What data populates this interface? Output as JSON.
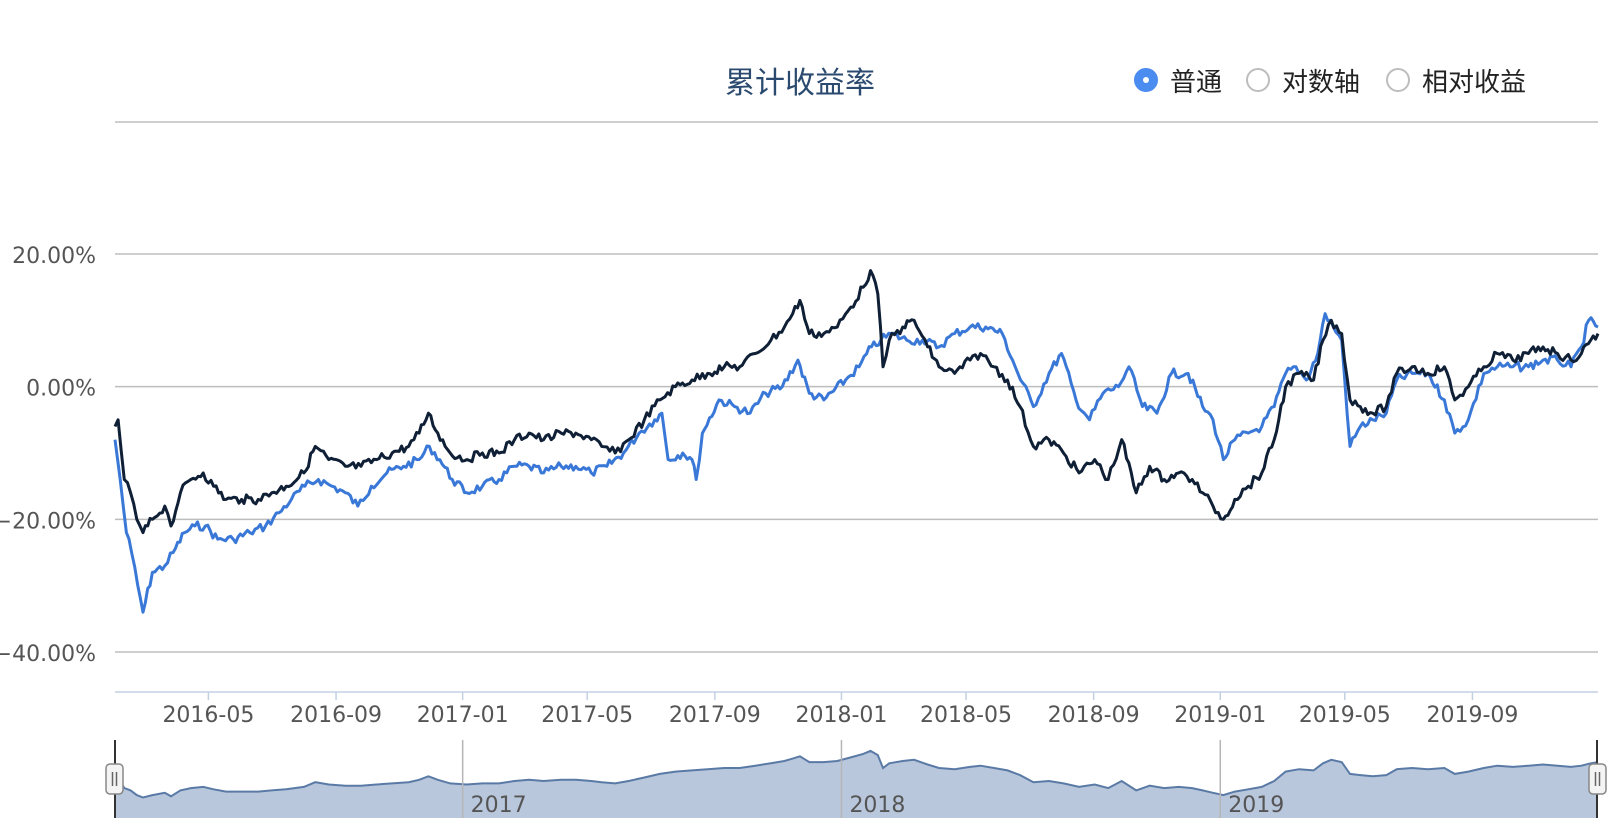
{
  "title": "累计收益率",
  "modes": [
    {
      "label": "普通",
      "checked": true
    },
    {
      "label": "对数轴",
      "checked": false
    },
    {
      "label": "相对收益",
      "checked": false
    }
  ],
  "colors": {
    "series_strategy": "#0f1f36",
    "series_benchmark": "#3a78d8",
    "grid": "#bdbdbd",
    "navigator_fill": "#b9c7dc",
    "navigator_line": "#5a7aa6",
    "radio_checked": "#4b8cf0"
  },
  "navigator": {
    "year_labels": [
      "2017",
      "2018",
      "2019"
    ]
  },
  "chart_data": {
    "type": "line",
    "title": "累计收益率",
    "y_unit": "%",
    "ylim": [
      -46,
      20
    ],
    "y_ticks": [
      20,
      0,
      -20,
      -40
    ],
    "y_tick_labels": [
      "20.00%",
      "0.00%",
      "−20.00%",
      "−40.00%"
    ],
    "x_range": [
      "2016-02-01",
      "2019-12-31"
    ],
    "x_ticks": [
      "2016-05-01",
      "2016-09-01",
      "2017-01-01",
      "2017-05-01",
      "2017-09-01",
      "2018-01-01",
      "2018-05-01",
      "2018-09-01",
      "2019-01-01",
      "2019-05-01",
      "2019-09-01"
    ],
    "x_tick_labels": [
      "2016-05",
      "2016-09",
      "2017-01",
      "2017-05",
      "2017-09",
      "2018-01",
      "2018-05",
      "2018-09",
      "2019-01",
      "2019-05",
      "2019-09"
    ],
    "grid": true,
    "legend": "none",
    "series": [
      {
        "color": "#0f1f36",
        "points": [
          [
            "2016-02-01",
            -6
          ],
          [
            "2016-02-04",
            -5
          ],
          [
            "2016-02-10",
            -14
          ],
          [
            "2016-02-16",
            -16
          ],
          [
            "2016-02-22",
            -20
          ],
          [
            "2016-02-28",
            -22
          ],
          [
            "2016-03-08",
            -20
          ],
          [
            "2016-03-20",
            -18
          ],
          [
            "2016-03-26",
            -21
          ],
          [
            "2016-04-04",
            -16
          ],
          [
            "2016-04-14",
            -14
          ],
          [
            "2016-04-26",
            -13
          ],
          [
            "2016-05-06",
            -15
          ],
          [
            "2016-05-18",
            -17
          ],
          [
            "2016-06-02",
            -17
          ],
          [
            "2016-06-18",
            -17
          ],
          [
            "2016-07-01",
            -16
          ],
          [
            "2016-07-15",
            -15
          ],
          [
            "2016-08-01",
            -13
          ],
          [
            "2016-08-12",
            -9
          ],
          [
            "2016-08-25",
            -11
          ],
          [
            "2016-09-10",
            -12
          ],
          [
            "2016-09-25",
            -12
          ],
          [
            "2016-10-10",
            -11
          ],
          [
            "2016-10-25",
            -10
          ],
          [
            "2016-11-10",
            -9
          ],
          [
            "2016-11-20",
            -7
          ],
          [
            "2016-11-29",
            -4
          ],
          [
            "2016-12-08",
            -7
          ],
          [
            "2016-12-20",
            -10
          ],
          [
            "2017-01-05",
            -11
          ],
          [
            "2017-01-20",
            -10
          ],
          [
            "2017-02-05",
            -10
          ],
          [
            "2017-02-20",
            -8
          ],
          [
            "2017-03-06",
            -7
          ],
          [
            "2017-03-20",
            -8
          ],
          [
            "2017-04-06",
            -7
          ],
          [
            "2017-04-20",
            -7
          ],
          [
            "2017-05-05",
            -8
          ],
          [
            "2017-05-15",
            -9
          ],
          [
            "2017-05-28",
            -10
          ],
          [
            "2017-06-10",
            -8
          ],
          [
            "2017-06-25",
            -5
          ],
          [
            "2017-07-10",
            -2
          ],
          [
            "2017-07-25",
            0
          ],
          [
            "2017-08-10",
            1
          ],
          [
            "2017-08-25",
            2
          ],
          [
            "2017-09-10",
            3
          ],
          [
            "2017-09-25",
            3
          ],
          [
            "2017-10-10",
            5
          ],
          [
            "2017-10-25",
            7
          ],
          [
            "2017-11-07",
            9
          ],
          [
            "2017-11-15",
            11
          ],
          [
            "2017-11-22",
            13
          ],
          [
            "2017-12-01",
            8
          ],
          [
            "2017-12-15",
            8
          ],
          [
            "2017-12-28",
            9
          ],
          [
            "2018-01-10",
            12
          ],
          [
            "2018-01-22",
            15
          ],
          [
            "2018-01-29",
            17.5
          ],
          [
            "2018-02-05",
            14
          ],
          [
            "2018-02-10",
            3
          ],
          [
            "2018-02-16",
            7
          ],
          [
            "2018-03-01",
            9
          ],
          [
            "2018-03-12",
            10
          ],
          [
            "2018-03-25",
            6
          ],
          [
            "2018-04-05",
            3
          ],
          [
            "2018-04-20",
            2
          ],
          [
            "2018-05-05",
            4
          ],
          [
            "2018-05-15",
            5
          ],
          [
            "2018-05-28",
            3
          ],
          [
            "2018-06-10",
            1
          ],
          [
            "2018-06-22",
            -3
          ],
          [
            "2018-07-05",
            -9
          ],
          [
            "2018-07-20",
            -8
          ],
          [
            "2018-08-03",
            -10
          ],
          [
            "2018-08-18",
            -13
          ],
          [
            "2018-09-02",
            -11
          ],
          [
            "2018-09-15",
            -14
          ],
          [
            "2018-09-28",
            -8
          ],
          [
            "2018-10-12",
            -16
          ],
          [
            "2018-10-25",
            -12
          ],
          [
            "2018-11-08",
            -14
          ],
          [
            "2018-11-22",
            -13
          ],
          [
            "2018-12-05",
            -14
          ],
          [
            "2018-12-15",
            -16
          ],
          [
            "2018-12-25",
            -18
          ],
          [
            "2019-01-04",
            -20
          ],
          [
            "2019-01-15",
            -17
          ],
          [
            "2019-01-28",
            -15
          ],
          [
            "2019-02-10",
            -13
          ],
          [
            "2019-02-22",
            -8
          ],
          [
            "2019-03-05",
            0
          ],
          [
            "2019-03-18",
            2
          ],
          [
            "2019-04-01",
            1
          ],
          [
            "2019-04-10",
            7
          ],
          [
            "2019-04-18",
            10
          ],
          [
            "2019-04-28",
            8
          ],
          [
            "2019-05-06",
            -2
          ],
          [
            "2019-05-16",
            -3
          ],
          [
            "2019-05-28",
            -4
          ],
          [
            "2019-06-10",
            -3
          ],
          [
            "2019-06-20",
            2
          ],
          [
            "2019-07-05",
            3
          ],
          [
            "2019-07-20",
            2
          ],
          [
            "2019-08-05",
            3
          ],
          [
            "2019-08-15",
            -2
          ],
          [
            "2019-08-28",
            0
          ],
          [
            "2019-09-12",
            3
          ],
          [
            "2019-09-25",
            5
          ],
          [
            "2019-10-10",
            4
          ],
          [
            "2019-10-25",
            5
          ],
          [
            "2019-11-08",
            6
          ],
          [
            "2019-11-22",
            5
          ],
          [
            "2019-12-05",
            4
          ],
          [
            "2019-12-15",
            5
          ],
          [
            "2019-12-24",
            7
          ],
          [
            "2019-12-31",
            8
          ]
        ]
      },
      {
        "color": "#3a78d8",
        "points": [
          [
            "2016-02-01",
            -8
          ],
          [
            "2016-02-06",
            -14
          ],
          [
            "2016-02-12",
            -22
          ],
          [
            "2016-02-17",
            -25
          ],
          [
            "2016-02-23",
            -30
          ],
          [
            "2016-02-28",
            -34
          ],
          [
            "2016-03-08",
            -28
          ],
          [
            "2016-03-20",
            -27
          ],
          [
            "2016-03-28",
            -25
          ],
          [
            "2016-04-08",
            -22
          ],
          [
            "2016-04-18",
            -21
          ],
          [
            "2016-04-28",
            -21
          ],
          [
            "2016-05-10",
            -23
          ],
          [
            "2016-05-25",
            -23
          ],
          [
            "2016-06-10",
            -22
          ],
          [
            "2016-06-25",
            -21
          ],
          [
            "2016-07-08",
            -19
          ],
          [
            "2016-07-20",
            -17
          ],
          [
            "2016-08-02",
            -15
          ],
          [
            "2016-08-15",
            -14
          ],
          [
            "2016-08-28",
            -15
          ],
          [
            "2016-09-10",
            -16
          ],
          [
            "2016-09-22",
            -18
          ],
          [
            "2016-10-05",
            -15
          ],
          [
            "2016-10-20",
            -13
          ],
          [
            "2016-11-05",
            -12
          ],
          [
            "2016-11-20",
            -11
          ],
          [
            "2016-11-30",
            -9
          ],
          [
            "2016-12-10",
            -11
          ],
          [
            "2016-12-22",
            -14
          ],
          [
            "2017-01-05",
            -16
          ],
          [
            "2017-01-20",
            -15
          ],
          [
            "2017-02-05",
            -14
          ],
          [
            "2017-02-20",
            -12
          ],
          [
            "2017-03-06",
            -12
          ],
          [
            "2017-03-20",
            -13
          ],
          [
            "2017-04-06",
            -12
          ],
          [
            "2017-04-20",
            -12
          ],
          [
            "2017-05-05",
            -13
          ],
          [
            "2017-05-20",
            -12
          ],
          [
            "2017-06-05",
            -10
          ],
          [
            "2017-06-20",
            -7
          ],
          [
            "2017-07-05",
            -5
          ],
          [
            "2017-07-12",
            -4
          ],
          [
            "2017-07-18",
            -11
          ],
          [
            "2017-08-01",
            -10
          ],
          [
            "2017-08-10",
            -11
          ],
          [
            "2017-08-14",
            -14
          ],
          [
            "2017-08-20",
            -7
          ],
          [
            "2017-09-05",
            -2
          ],
          [
            "2017-09-20",
            -3
          ],
          [
            "2017-10-05",
            -4
          ],
          [
            "2017-10-20",
            -1
          ],
          [
            "2017-11-05",
            0
          ],
          [
            "2017-11-20",
            4
          ],
          [
            "2017-12-01",
            -1
          ],
          [
            "2017-12-15",
            -2
          ],
          [
            "2018-01-05",
            1
          ],
          [
            "2018-01-18",
            3
          ],
          [
            "2018-01-30",
            6
          ],
          [
            "2018-02-08",
            7
          ],
          [
            "2018-02-18",
            8
          ],
          [
            "2018-03-05",
            7
          ],
          [
            "2018-03-20",
            7
          ],
          [
            "2018-04-05",
            6
          ],
          [
            "2018-04-20",
            8
          ],
          [
            "2018-05-05",
            9
          ],
          [
            "2018-05-20",
            9
          ],
          [
            "2018-06-05",
            8
          ],
          [
            "2018-06-20",
            2
          ],
          [
            "2018-07-05",
            -3
          ],
          [
            "2018-07-20",
            2
          ],
          [
            "2018-08-01",
            5
          ],
          [
            "2018-08-15",
            -2
          ],
          [
            "2018-08-28",
            -5
          ],
          [
            "2018-09-10",
            -1
          ],
          [
            "2018-09-25",
            0
          ],
          [
            "2018-10-05",
            3
          ],
          [
            "2018-10-18",
            -3
          ],
          [
            "2018-11-01",
            -4
          ],
          [
            "2018-11-15",
            2
          ],
          [
            "2018-12-01",
            2
          ],
          [
            "2018-12-15",
            -3
          ],
          [
            "2018-12-25",
            -5
          ],
          [
            "2019-01-04",
            -11
          ],
          [
            "2019-01-15",
            -8
          ],
          [
            "2019-01-28",
            -7
          ],
          [
            "2019-02-10",
            -6
          ],
          [
            "2019-02-22",
            -3
          ],
          [
            "2019-03-05",
            2
          ],
          [
            "2019-03-15",
            3
          ],
          [
            "2019-03-25",
            1
          ],
          [
            "2019-04-05",
            5
          ],
          [
            "2019-04-12",
            11
          ],
          [
            "2019-04-20",
            9
          ],
          [
            "2019-04-28",
            7
          ],
          [
            "2019-05-06",
            -9
          ],
          [
            "2019-05-16",
            -6
          ],
          [
            "2019-05-28",
            -5
          ],
          [
            "2019-06-10",
            -4
          ],
          [
            "2019-06-20",
            1
          ],
          [
            "2019-07-05",
            2
          ],
          [
            "2019-07-20",
            2
          ],
          [
            "2019-08-05",
            -2
          ],
          [
            "2019-08-15",
            -7
          ],
          [
            "2019-08-28",
            -5
          ],
          [
            "2019-09-12",
            2
          ],
          [
            "2019-09-25",
            3
          ],
          [
            "2019-10-10",
            3
          ],
          [
            "2019-10-25",
            3
          ],
          [
            "2019-11-08",
            4
          ],
          [
            "2019-11-22",
            4
          ],
          [
            "2019-12-05",
            3
          ],
          [
            "2019-12-15",
            6
          ],
          [
            "2019-12-22",
            10
          ],
          [
            "2019-12-31",
            9
          ]
        ]
      }
    ]
  }
}
